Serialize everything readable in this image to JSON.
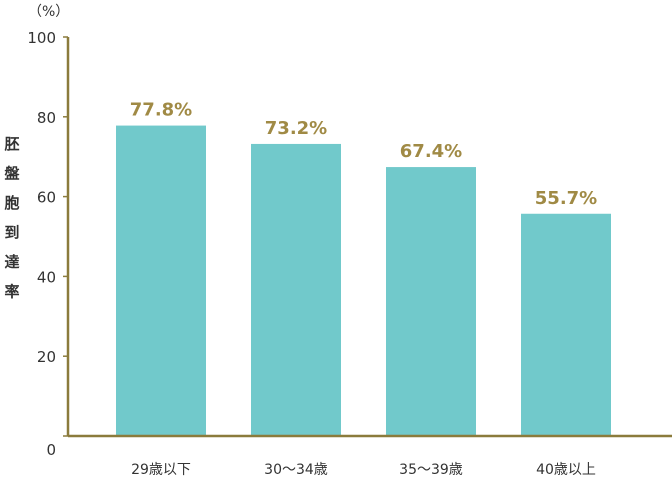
{
  "chart_data": {
    "type": "bar",
    "unit_label": "（%）",
    "ylabel": "胚盤胞到達率",
    "categories": [
      "29歳以下",
      "30～34歳",
      "35～39歳",
      "40歳以上"
    ],
    "values": [
      77.8,
      73.2,
      67.4,
      55.7
    ],
    "data_labels": [
      "77.8%",
      "73.2%",
      "67.4%",
      "55.7%"
    ],
    "yticks": [
      0,
      20,
      40,
      60,
      80,
      100
    ],
    "ylim": [
      0,
      100
    ],
    "grid": false,
    "legend": "none",
    "colors": {
      "bar": "#71c9cb",
      "axis": "#8b7b3c",
      "data_label": "#a08a45"
    }
  }
}
